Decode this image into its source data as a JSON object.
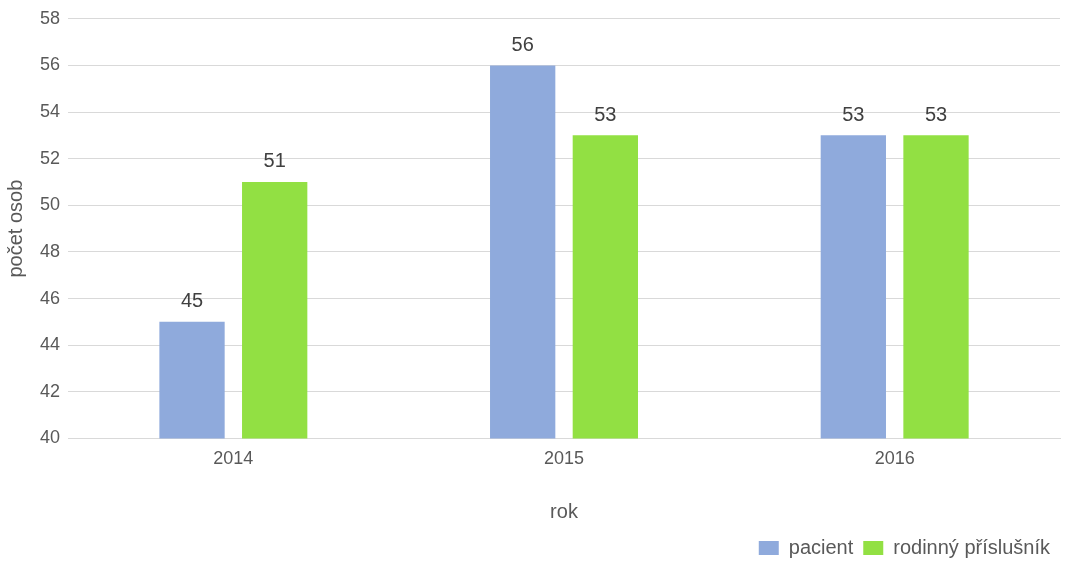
{
  "chart_data": {
    "type": "bar",
    "xlabel": "rok",
    "ylabel": "počet osob",
    "categories": [
      "2014",
      "2015",
      "2016"
    ],
    "series": [
      {
        "name": "pacient",
        "color": "#8faadc",
        "values": [
          45,
          56,
          53
        ]
      },
      {
        "name": "rodinný příslušník",
        "color": "#92e043",
        "values": [
          51,
          53,
          53
        ]
      }
    ],
    "ylim": [
      40,
      58
    ],
    "yticks": [
      40,
      42,
      44,
      46,
      48,
      50,
      52,
      54,
      56,
      58
    ],
    "grid": "y",
    "legend": "bottom right",
    "data_labels": true
  }
}
